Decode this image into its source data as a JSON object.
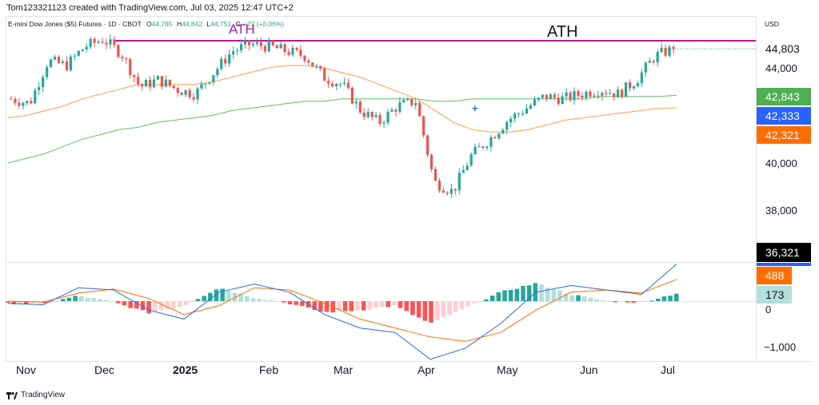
{
  "header": {
    "credit": "Tom123321123 created with TradingView.com, Jul 03, 2025 12:47 UTC+2"
  },
  "legend": {
    "symbol": "E-mini Dow Jones ($5) Futures · 1D · CBOT",
    "o_label": "O",
    "o_value": "44,785",
    "h_label": "H",
    "h_value": "44,842",
    "l_label": "L",
    "l_value": "44,751",
    "c_label": "C",
    "change": "+27 (+0.06%)"
  },
  "annotations": {
    "ath_left": "ATH",
    "ath_right": "ATH"
  },
  "price_axis": {
    "currency": "USD",
    "ticks": [
      "44,000",
      "40,000",
      "38,000"
    ],
    "badges": [
      {
        "text": "44,803",
        "bg": "#ffffff",
        "fg": "#131722"
      },
      {
        "text": "42,843",
        "bg": "#4caf50",
        "fg": "#ffffff"
      },
      {
        "text": "42,333",
        "bg": "#2962ff",
        "fg": "#ffffff"
      },
      {
        "text": "42,321",
        "bg": "#ff6d00",
        "fg": "#ffffff"
      },
      {
        "text": "36,321",
        "bg": "#000000",
        "fg": "#ffffff"
      }
    ]
  },
  "indicator_axis": {
    "ticks": [
      "0",
      "−1,000"
    ],
    "badges": [
      {
        "text": "488",
        "bg": "#ff6d00",
        "fg": "#ffffff"
      },
      {
        "text": "173",
        "bg": "#b2dfdb",
        "fg": "#131722"
      }
    ]
  },
  "time_axis": {
    "labels": [
      "Nov",
      "Dec",
      "2025",
      "Feb",
      "Mar",
      "Apr",
      "May",
      "Jun",
      "Jul"
    ]
  },
  "footer": {
    "brand": "TradingView"
  },
  "colors": {
    "up": "#26a69a",
    "down": "#ef5350",
    "ath_line": "#b5179e",
    "sma_fast": "#ff9b4a",
    "sma_slow": "#66bb6a",
    "macd": "#2962ff",
    "signal": "#ff6d00"
  },
  "chart_data": [
    {
      "type": "line",
      "title": "",
      "x": [
        "Oct 28",
        "Nov 4",
        "Nov 11",
        "Nov 18",
        "Nov 25",
        "Dec 2",
        "Dec 9",
        "Dec 16",
        "Dec 23",
        "Dec 30",
        "Jan 6",
        "Jan 13",
        "Jan 20",
        "Jan 27",
        "Feb 3",
        "Feb 10",
        "Feb 17",
        "Feb 24",
        "Mar 3",
        "Mar 10",
        "Mar 17",
        "Mar 24",
        "Mar 31",
        "Apr 7",
        "Apr 14",
        "Apr 21",
        "Apr 28",
        "May 5",
        "May 12",
        "May 19",
        "May 26",
        "Jun 2",
        "Jun 9",
        "Jun 16",
        "Jun 23",
        "Jun 30",
        "Jul 3"
      ],
      "series": [
        {
          "values": [
            42700,
            42500,
            44300,
            44100,
            44900,
            45200,
            44600,
            43200,
            43500,
            43100,
            42900,
            43800,
            44700,
            45000,
            44900,
            44700,
            44500,
            43600,
            43300,
            42200,
            41700,
            42400,
            42600,
            39200,
            38800,
            40300,
            41000,
            41800,
            42300,
            42800,
            42700,
            42900,
            43100,
            42900,
            43500,
            44500,
            44803
          ]
        },
        {
          "values": [
            41900,
            42000,
            42200,
            42400,
            42700,
            42900,
            43100,
            43300,
            43300,
            43300,
            43300,
            43400,
            43600,
            43800,
            44000,
            44100,
            44100,
            44000,
            43800,
            43600,
            43300,
            43000,
            42700,
            42200,
            41700,
            41400,
            41300,
            41300,
            41400,
            41600,
            41800,
            41900,
            42000,
            42100,
            42200,
            42300,
            42321
          ]
        },
        {
          "values": [
            40000,
            40200,
            40400,
            40700,
            41000,
            41200,
            41400,
            41500,
            41700,
            41800,
            41900,
            42000,
            42200,
            42300,
            42400,
            42500,
            42600,
            42600,
            42700,
            42700,
            42700,
            42700,
            42700,
            42600,
            42600,
            42700,
            42700,
            42700,
            42700,
            42700,
            42700,
            42700,
            42800,
            42800,
            42800,
            42800,
            42843
          ]
        }
      ],
      "ylim": [
        36321,
        45500
      ]
    },
    {
      "type": "line",
      "title": "",
      "x": [
        "Oct 28",
        "Nov 11",
        "Nov 25",
        "Dec 9",
        "Dec 23",
        "Jan 6",
        "Jan 20",
        "Feb 3",
        "Feb 17",
        "Mar 3",
        "Mar 17",
        "Mar 31",
        "Apr 7",
        "Apr 14",
        "Apr 28",
        "May 12",
        "May 26",
        "Jun 9",
        "Jun 23",
        "Jul 3"
      ],
      "series": [
        {
          "values": [
            -50,
            -80,
            300,
            250,
            -200,
            -400,
            200,
            380,
            200,
            -300,
            -600,
            -700,
            -1300,
            -1050,
            -500,
            200,
            350,
            250,
            150,
            830
          ]
        },
        {
          "values": [
            0,
            -20,
            180,
            270,
            60,
            -300,
            -100,
            300,
            250,
            -50,
            -400,
            -600,
            -800,
            -900,
            -700,
            -200,
            200,
            250,
            180,
            488
          ]
        },
        {
          "values": [
            -50,
            -60,
            120,
            -20,
            -260,
            -100,
            300,
            80,
            -50,
            -250,
            -200,
            -100,
            -500,
            -150,
            200,
            400,
            150,
            0,
            -30,
            173
          ]
        }
      ]
    }
  ]
}
